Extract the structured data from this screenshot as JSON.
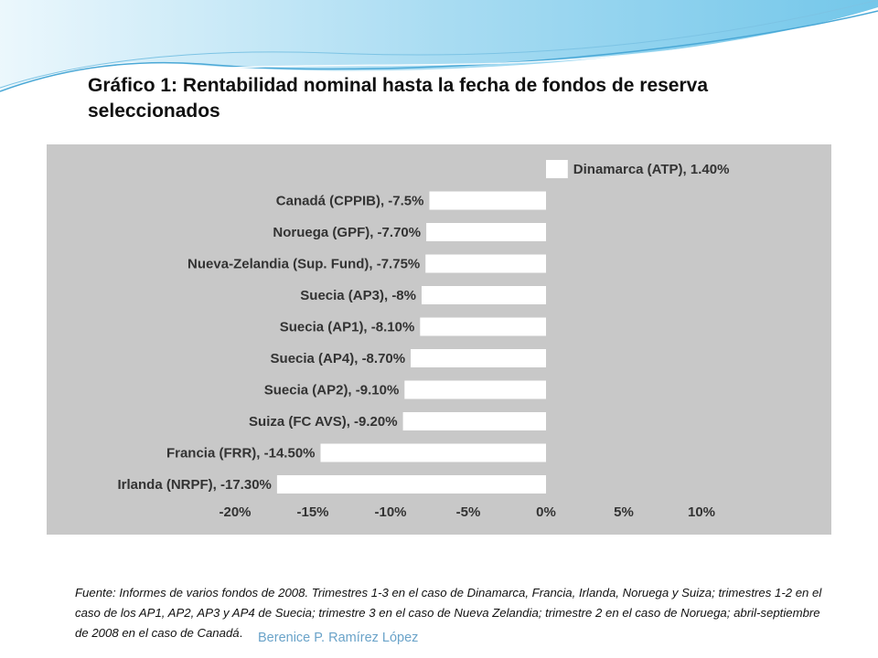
{
  "slide": {
    "title": "Gráfico 1: Rentabilidad nominal hasta la fecha de fondos de reserva seleccionados",
    "source_note": "Fuente: Informes de varios fondos de 2008. Trimestres 1-3 en el caso de Dinamarca, Francia, Irlanda, Noruega y Suiza; trimestres 1-2 en el caso de los AP1, AP2, AP3 y AP4 de Suecia; trimestre 3 en el caso de Nueva Zelandia; trimestre 2 en el caso de Noruega; abril-septiembre de 2008 en el caso de Canadá",
    "source_end": ".",
    "footer": "Berenice P. Ramírez López"
  },
  "theme": {
    "panel_bg": "#c8c8c8",
    "bar_fill": "#ffffff",
    "header_wave": "#7ec8e8",
    "footer_text": "#6aa3c9"
  },
  "chart_data": {
    "type": "bar",
    "orientation": "horizontal",
    "categories": [
      "Dinamarca (ATP), 1.40%",
      "Canadá (CPPIB), -7.5%",
      "Noruega (GPF), -7.70%",
      "Nueva-Zelandia (Sup. Fund), -7.75%",
      "Suecia (AP3), -8%",
      "Suecia (AP1), -8.10%",
      "Suecia (AP4), -8.70%",
      "Suecia (AP2), -9.10%",
      "Suiza (FC AVS), -9.20%",
      "Francia (FRR), -14.50%",
      "Irlanda (NRPF), -17.30%"
    ],
    "values": [
      1.4,
      -7.5,
      -7.7,
      -7.75,
      -8.0,
      -8.1,
      -8.7,
      -9.1,
      -9.2,
      -14.5,
      -17.3
    ],
    "xlim": [
      -20,
      10
    ],
    "xticks": [
      "-20%",
      "-15%",
      "-10%",
      "-5%",
      "0%",
      "5%",
      "10%"
    ],
    "xtick_values": [
      -20,
      -15,
      -10,
      -5,
      0,
      5,
      10
    ],
    "grid": false,
    "legend": "none"
  }
}
